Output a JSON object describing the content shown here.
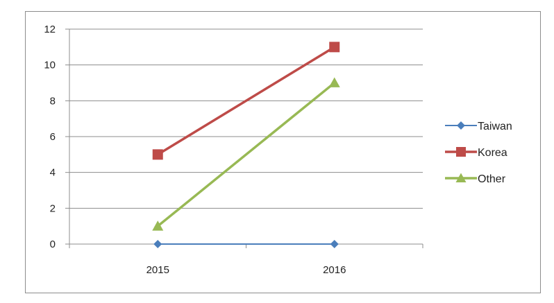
{
  "chart_data": {
    "type": "line",
    "categories": [
      "2015",
      "2016"
    ],
    "ylim": [
      0,
      12
    ],
    "yticks": [
      0,
      2,
      4,
      6,
      8,
      10,
      12
    ],
    "grid": true,
    "legend_position": "right",
    "series": [
      {
        "name": "Taiwan",
        "values": [
          0,
          0
        ],
        "color": "#4a7ebb",
        "marker": "diamond"
      },
      {
        "name": "Korea",
        "values": [
          5,
          11
        ],
        "color": "#be4b48",
        "marker": "square"
      },
      {
        "name": "Other",
        "values": [
          1,
          9
        ],
        "color": "#98b954",
        "marker": "triangle"
      }
    ]
  }
}
